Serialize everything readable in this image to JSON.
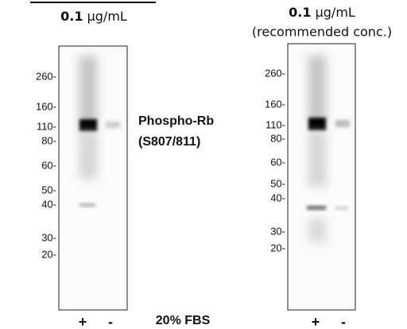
{
  "left_panel": {
    "concentration": "0.1",
    "unit": "µg/mL",
    "markers": [
      "260-",
      "160-",
      "110-",
      "80-",
      "60-",
      "50-",
      "40-",
      "30-",
      "20-"
    ],
    "lanes": [
      "+",
      "-"
    ]
  },
  "target": {
    "name": "Phospho-Rb",
    "site": "(S807/811)"
  },
  "treatment": "20% FBS",
  "right_panel": {
    "concentration": "0.1",
    "unit": "µg/mL",
    "note": "(recommended conc.)",
    "markers": [
      "260-",
      "160-",
      "110-",
      "80-",
      "60-",
      "50-",
      "40-",
      "30-",
      "20-"
    ],
    "lanes": [
      "+",
      "-"
    ]
  }
}
